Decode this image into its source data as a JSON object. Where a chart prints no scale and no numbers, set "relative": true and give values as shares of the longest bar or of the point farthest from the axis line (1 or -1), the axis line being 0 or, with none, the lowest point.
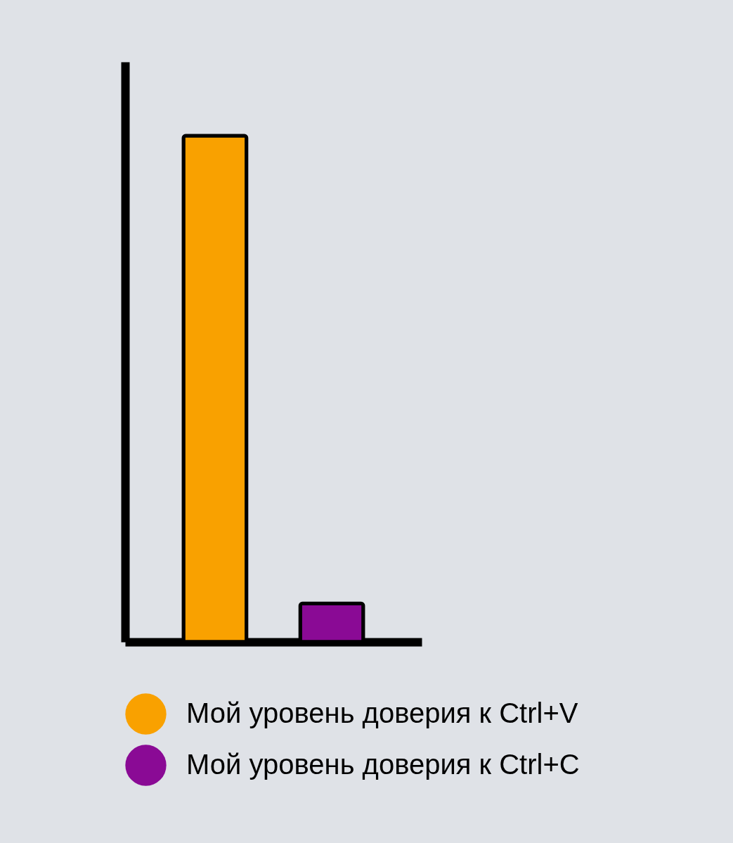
{
  "chart_data": {
    "type": "bar",
    "relative": true,
    "categories": [
      null,
      null
    ],
    "series": [
      {
        "name": "Мой уровень доверия к Ctrl+V",
        "color": "#f9a100",
        "values": [
          1,
          null
        ]
      },
      {
        "name": "Мой уровень доверия к Ctrl+C",
        "color": "#8a0a95",
        "values": [
          null,
          0.076
        ]
      }
    ],
    "stacked": true,
    "legend": "bottom",
    "grid": false
  }
}
